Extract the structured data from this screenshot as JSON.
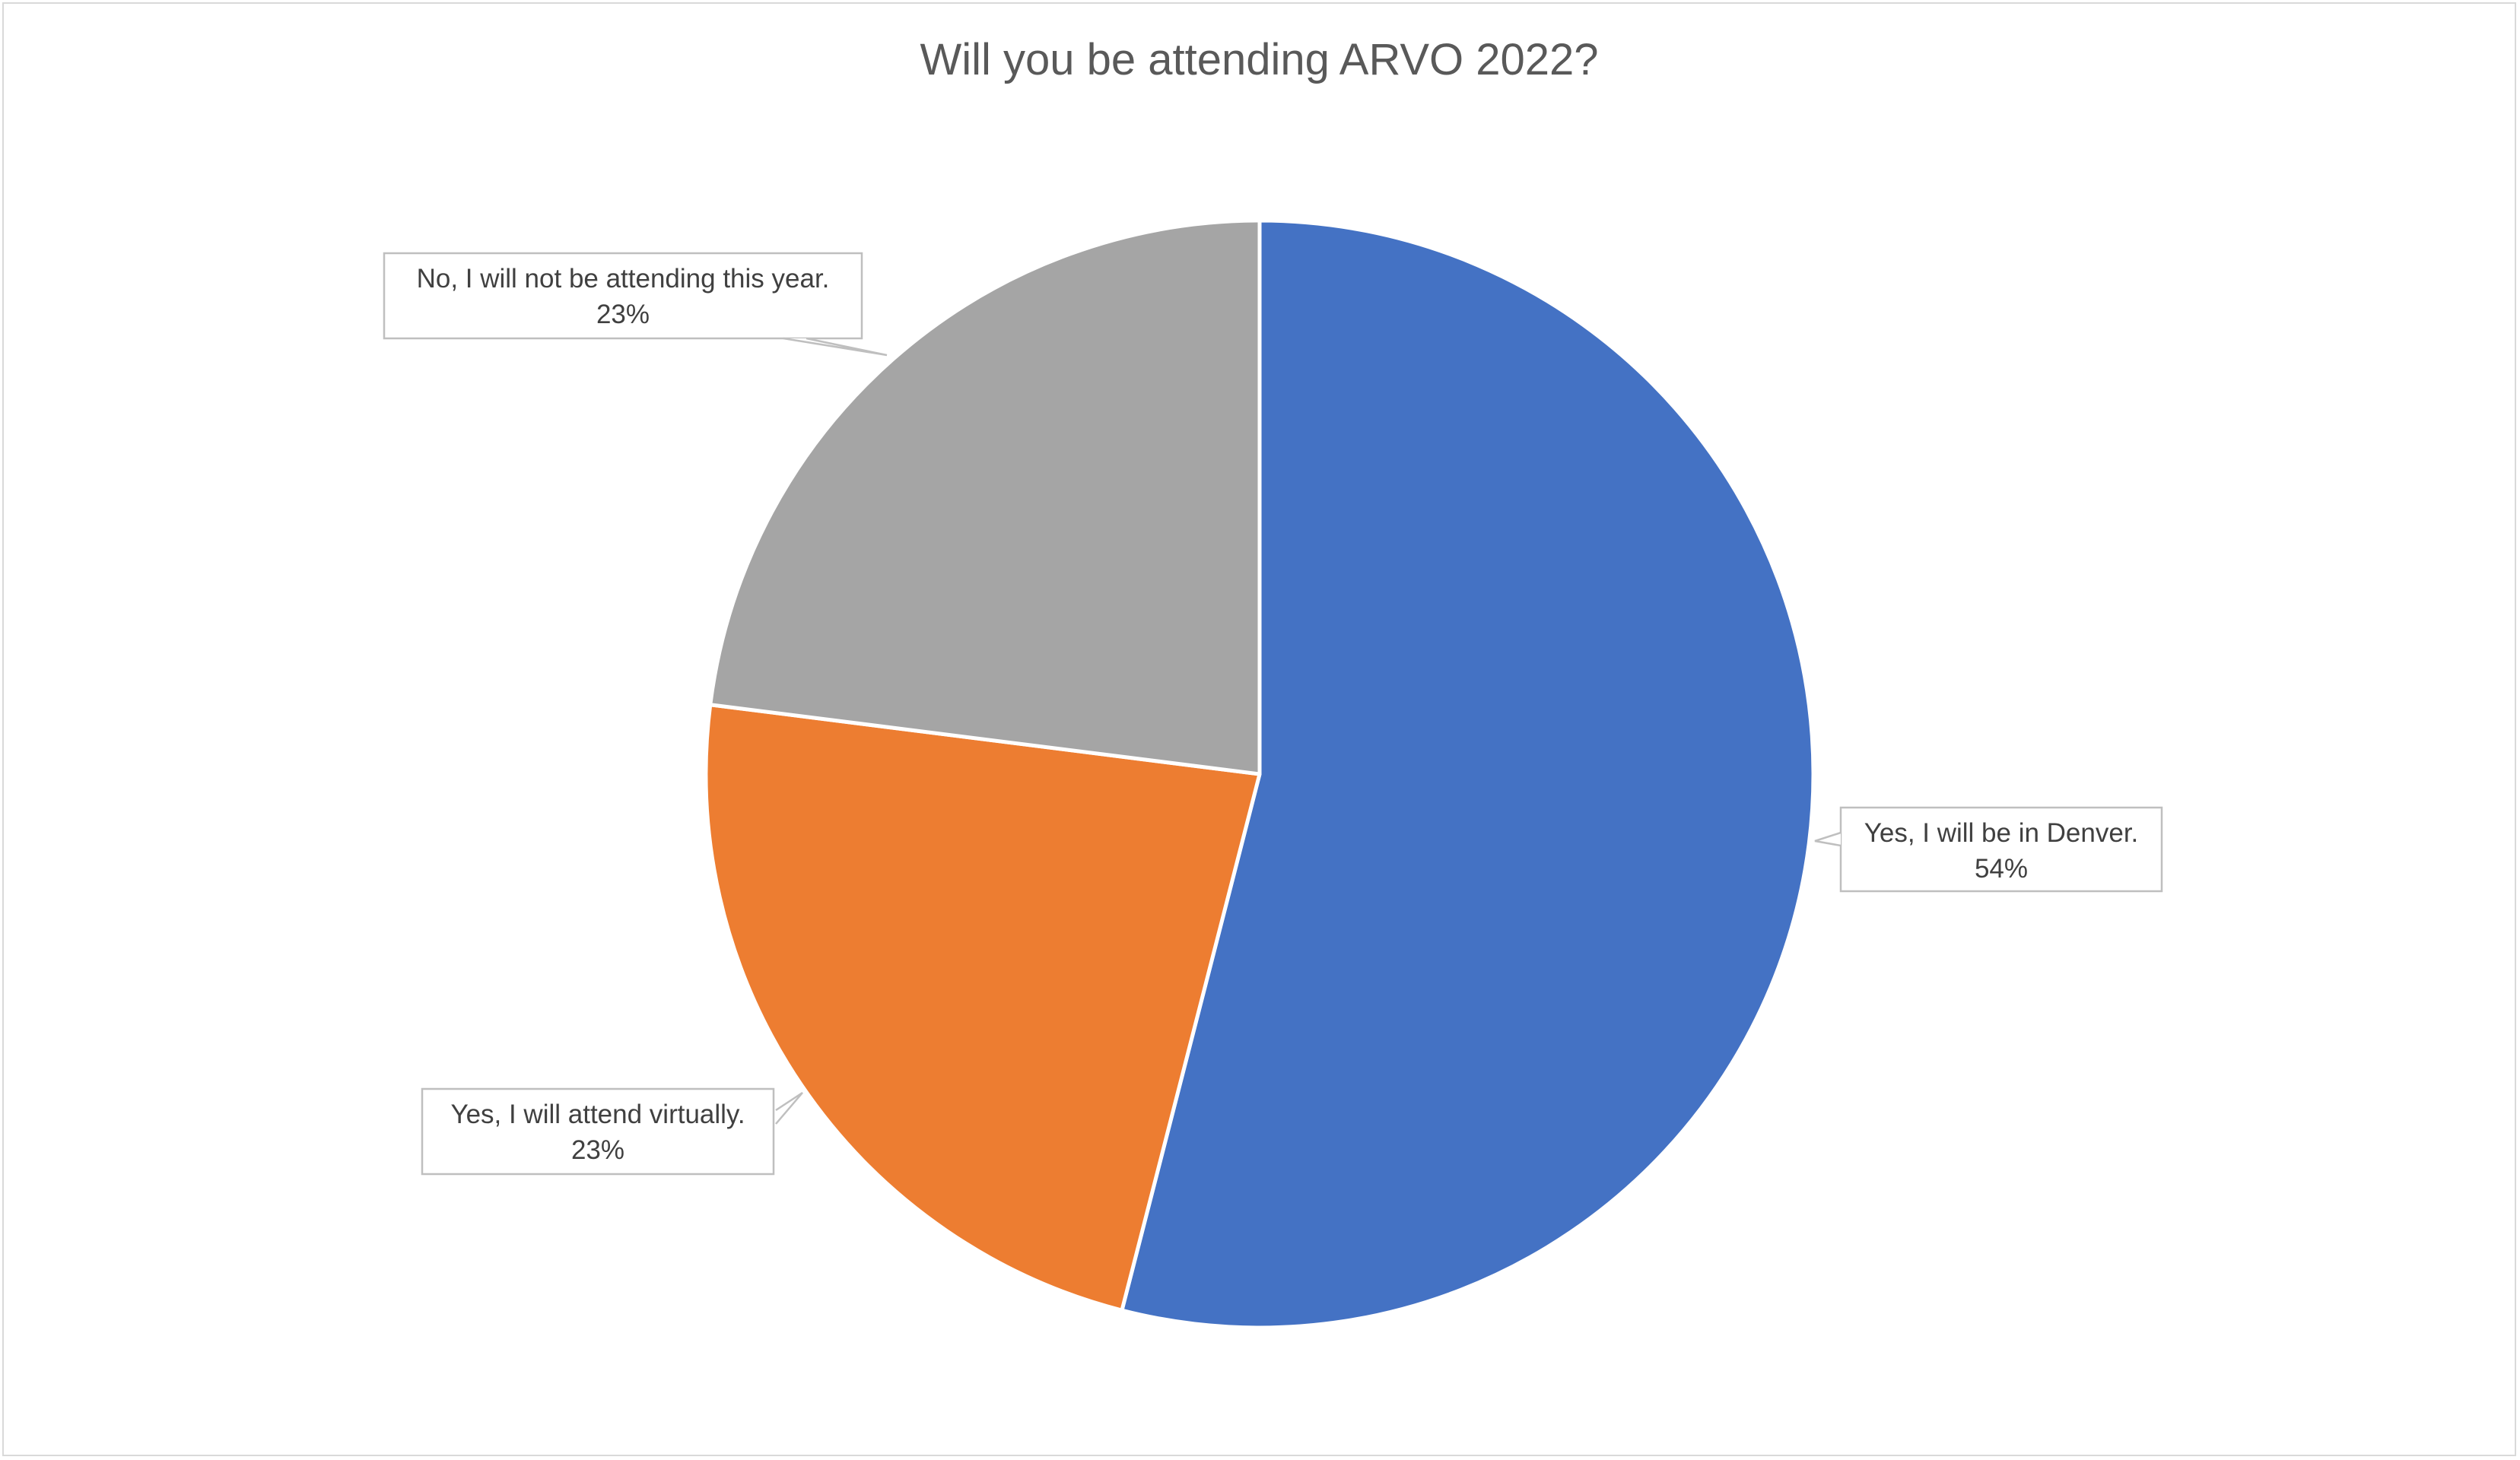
{
  "chart_data": {
    "type": "pie",
    "title": "Will you be attending ARVO 2022?",
    "slices": [
      {
        "name": "Yes, I will be in Denver.",
        "value": 54,
        "label": "54%",
        "color": "#4472C4"
      },
      {
        "name": "Yes, I will attend virtually.",
        "value": 23,
        "label": "23%",
        "color": "#ED7D31"
      },
      {
        "name": "No, I will not be attending this year.",
        "value": 23,
        "label": "23%",
        "color": "#A5A5A5"
      }
    ],
    "legend": "none",
    "data_labels": "callouts"
  }
}
